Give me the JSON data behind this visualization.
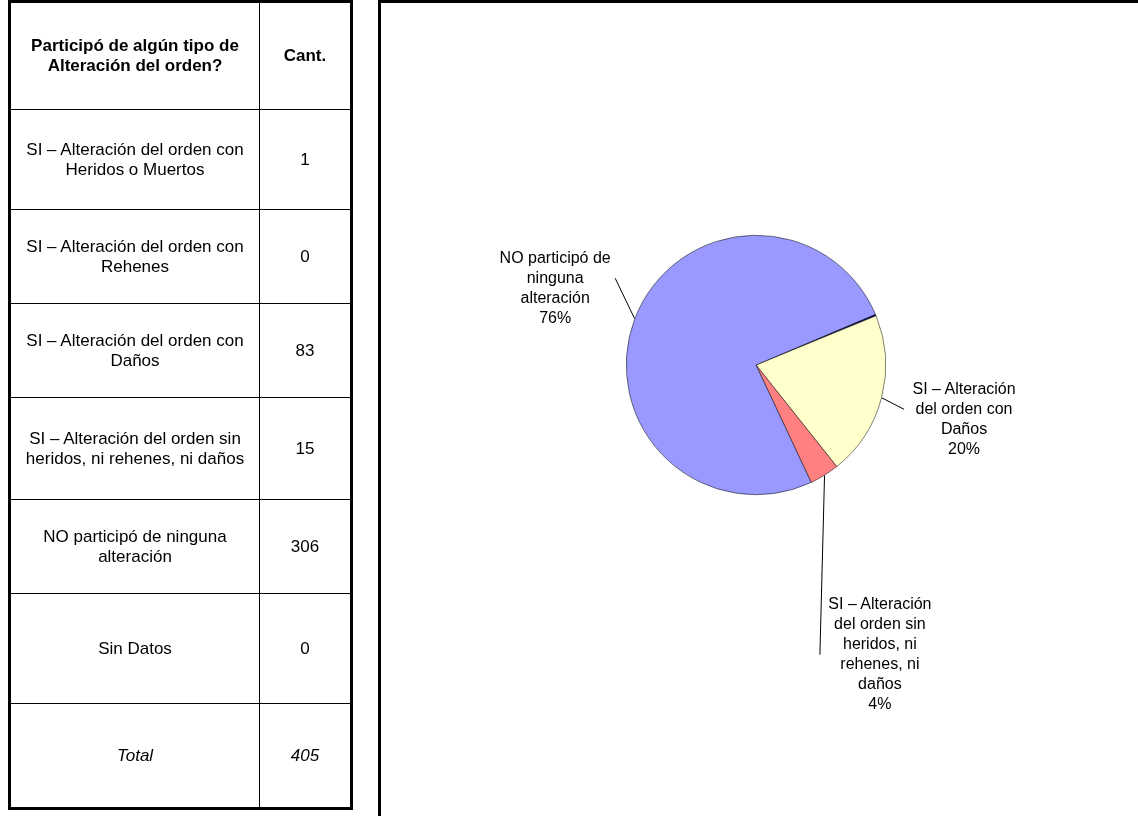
{
  "chart_data": {
    "type": "pie",
    "categories": [
      null,
      null,
      "SI – Alteración del orden con Daños",
      "SI – Alteración del orden sin heridos, ni rehenes, ni daños",
      "NO participó de ninguna alteración",
      null
    ],
    "values": [
      0.2,
      0,
      20.5,
      3.7,
      75.6,
      0
    ],
    "colors": [
      "#000080",
      "#ccffff",
      "#ffffcc",
      "#ff8080",
      "#9999ff",
      "#660066"
    ],
    "value_labels": [
      null,
      null,
      "20%",
      "4%",
      "76%",
      null
    ],
    "legend": false,
    "annotations": [
      "Participó de algún tipo de Alteración del orden?",
      "Cant.",
      "SI – Alteración del orden con Heridos o Muertos",
      "1",
      "SI – Alteración del orden con Rehenes",
      "0",
      "SI – Alteración del orden con Daños",
      "83",
      "SI – Alteración del orden sin heridos, ni rehenes, ni daños",
      "15",
      "NO participó de ninguna alteración",
      "306",
      "Sin Datos",
      "0",
      "Total",
      "405"
    ]
  }
}
